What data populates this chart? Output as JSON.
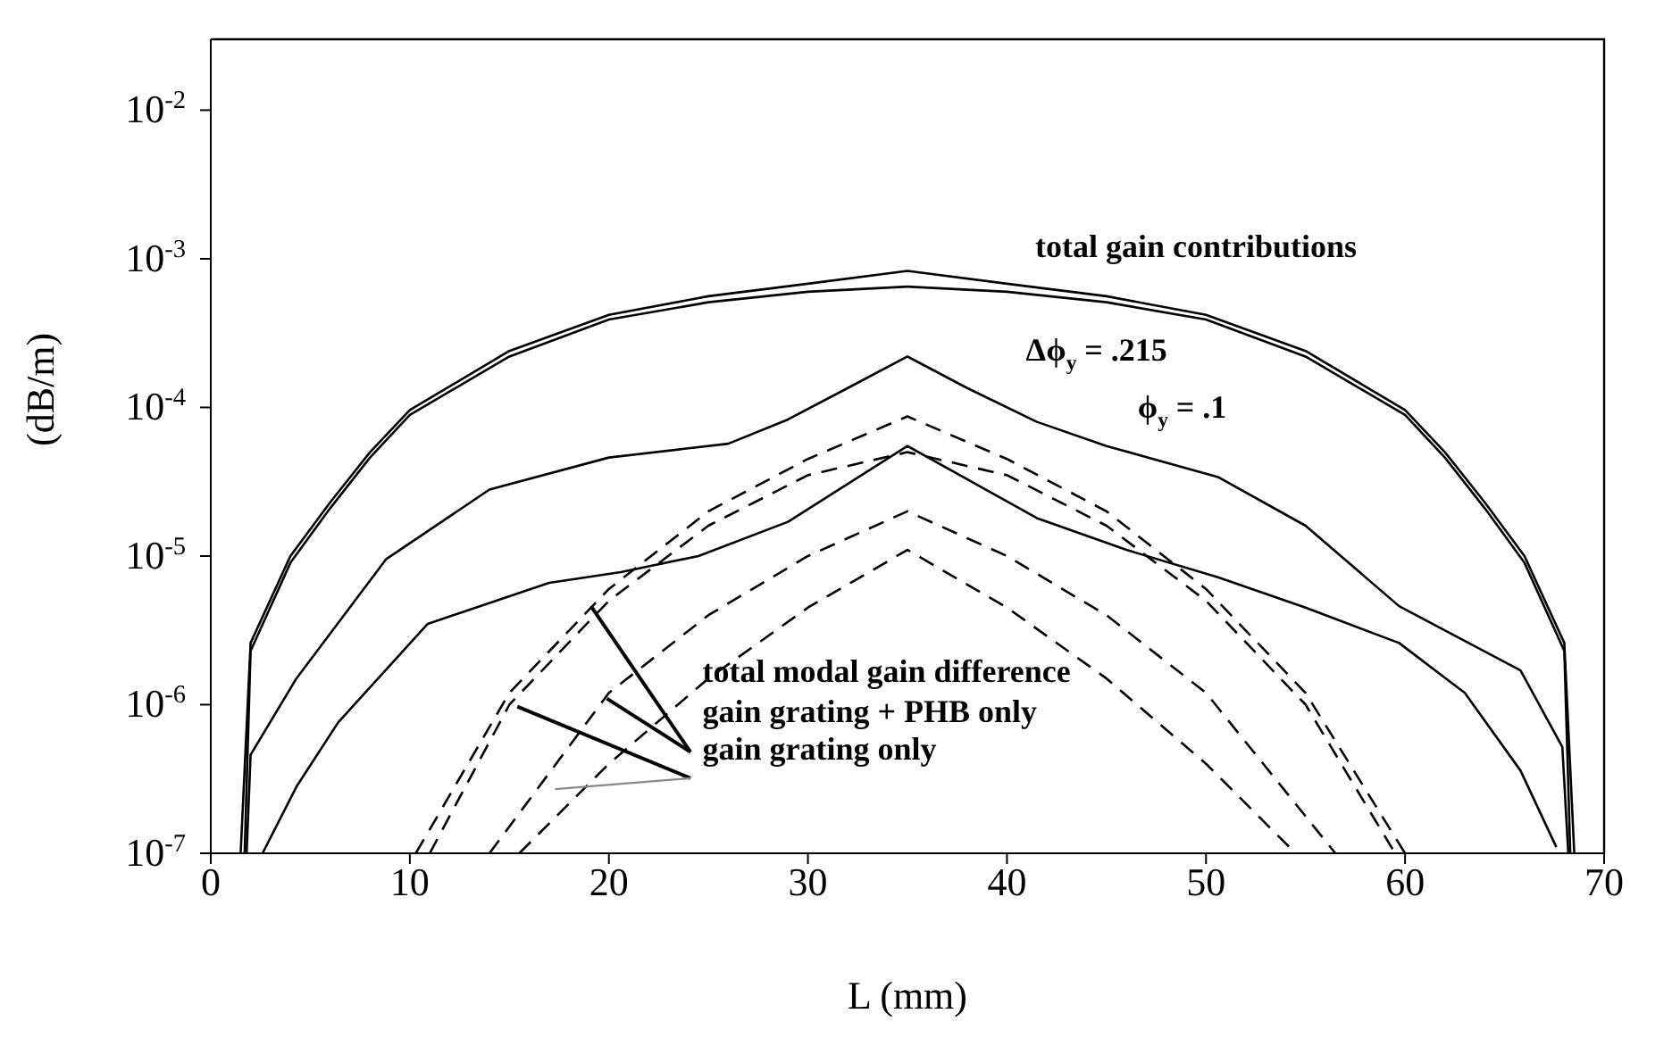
{
  "chart_data": {
    "type": "line",
    "xlabel": "L (mm)",
    "ylabel": "(dB/m)",
    "xlim": [
      0,
      70
    ],
    "xticks": [
      0,
      10,
      20,
      30,
      40,
      50,
      60,
      70
    ],
    "log": "y",
    "ylim": [
      1e-07,
      0.03
    ],
    "yticks": [
      {
        "value": 1e-07,
        "label": "10$^{-7}$"
      },
      {
        "value": 1e-06,
        "label": "10$^{-6}$"
      },
      {
        "value": 1e-05,
        "label": "10$^{-5}$"
      },
      {
        "value": 0.0001,
        "label": "10$^{-4}$"
      },
      {
        "value": 0.001,
        "label": "10$^{-3}$"
      },
      {
        "value": 0.01,
        "label": "10$^{-2}$"
      }
    ],
    "marker": "none",
    "series": [
      {
        "color": "#000000",
        "line_style": "solid",
        "x": [
          1.5,
          2,
          4,
          6,
          8,
          10,
          15,
          20,
          25,
          30,
          35,
          40,
          45,
          50,
          55,
          60,
          62,
          64,
          66,
          68,
          68.5
        ],
        "values": [
          1e-07,
          2.6e-06,
          1e-05,
          2.3e-05,
          5e-05,
          9.6e-05,
          0.00024,
          0.00042,
          0.00056,
          0.00068,
          0.00083,
          0.00068,
          0.00056,
          0.00042,
          0.00024,
          9.6e-05,
          5e-05,
          2.3e-05,
          1e-05,
          2.6e-06,
          1e-07
        ]
      },
      {
        "color": "#000000",
        "line_style": "solid",
        "x": [
          1.7,
          2,
          4,
          6,
          8,
          10,
          15,
          20,
          25,
          30,
          35,
          40,
          45,
          50,
          55,
          60,
          62,
          64,
          66,
          68,
          68.3
        ],
        "values": [
          1e-07,
          2.3e-06,
          9e-06,
          2.1e-05,
          4.6e-05,
          8.9e-05,
          0.00022,
          0.00039,
          0.00051,
          0.0006,
          0.00065,
          0.0006,
          0.00051,
          0.00039,
          0.00022,
          8.9e-05,
          4.6e-05,
          2.1e-05,
          9e-06,
          2.3e-06,
          1e-07
        ]
      },
      {
        "color": "#000000",
        "line_style": "solid",
        "x": [
          1.8,
          2,
          4.3,
          8.8,
          14,
          20,
          26,
          29,
          32,
          35,
          38,
          41.5,
          45,
          50.6,
          55,
          59.7,
          65.8,
          67.9,
          68.2
        ],
        "values": [
          1e-07,
          4.6e-07,
          1.5e-06,
          9.5e-06,
          2.8e-05,
          4.6e-05,
          5.7e-05,
          8.3e-05,
          0.000135,
          0.00022,
          0.000135,
          8e-05,
          5.5e-05,
          3.4e-05,
          1.6e-05,
          4.6e-06,
          1.7e-06,
          5.2e-07,
          1e-07
        ]
      },
      {
        "color": "#000000",
        "line_style": "solid",
        "x": [
          2.6,
          4.3,
          6.4,
          10.9,
          17,
          20.6,
          24.5,
          29,
          35,
          41.5,
          46,
          50.6,
          55,
          59.7,
          63,
          65.8,
          67.6
        ],
        "values": [
          1e-07,
          2.8e-07,
          7.6e-07,
          3.5e-06,
          6.6e-06,
          7.8e-06,
          1e-05,
          1.7e-05,
          5.5e-05,
          1.8e-05,
          1.1e-05,
          7.2e-06,
          4.5e-06,
          2.6e-06,
          1.2e-06,
          3.6e-07,
          1.1e-07
        ]
      },
      {
        "color": "#000000",
        "line_style": "dashed",
        "x": [
          10.3,
          15,
          20,
          25,
          30,
          35,
          40,
          45,
          50,
          55,
          60
        ],
        "values": [
          1e-07,
          1.2e-06,
          6e-06,
          2e-05,
          4.5e-05,
          8.7e-05,
          4.5e-05,
          2e-05,
          6e-06,
          1.2e-06,
          1e-07
        ]
      },
      {
        "color": "#000000",
        "line_style": "dashed",
        "x": [
          11,
          15,
          20,
          25,
          30,
          35,
          40,
          45,
          50,
          55,
          59.5
        ],
        "values": [
          1e-07,
          1e-06,
          5e-06,
          1.6e-05,
          3.5e-05,
          5e-05,
          3.5e-05,
          1.6e-05,
          5e-06,
          1e-06,
          1e-07
        ]
      },
      {
        "color": "#000000",
        "line_style": "dashed",
        "x": [
          14,
          20,
          25,
          30,
          35,
          40,
          45,
          50,
          56.5
        ],
        "values": [
          1e-07,
          1.2e-06,
          4e-06,
          1e-05,
          2e-05,
          1e-05,
          4e-06,
          1.2e-06,
          1e-07
        ]
      },
      {
        "color": "#000000",
        "line_style": "dashed",
        "x": [
          15.5,
          20,
          25,
          30,
          35,
          40,
          45,
          50,
          54.5
        ],
        "values": [
          1e-07,
          4e-07,
          1.5e-06,
          4.5e-06,
          1.1e-05,
          4.5e-06,
          1.5e-06,
          4e-07,
          1e-07
        ]
      }
    ],
    "annotations": [
      "total gain contributions",
      "Δϕ$_{y}$ = .215",
      "ϕ$_{y}$ = .1",
      "total modal gain difference",
      {
        "text": "gain grating + PHB only",
        "x": 19.9,
        "y": 1.1e-06
      },
      {
        "text": "gain grating only",
        "x": 15.4,
        "y": 9.7e-07
      }
    ]
  }
}
